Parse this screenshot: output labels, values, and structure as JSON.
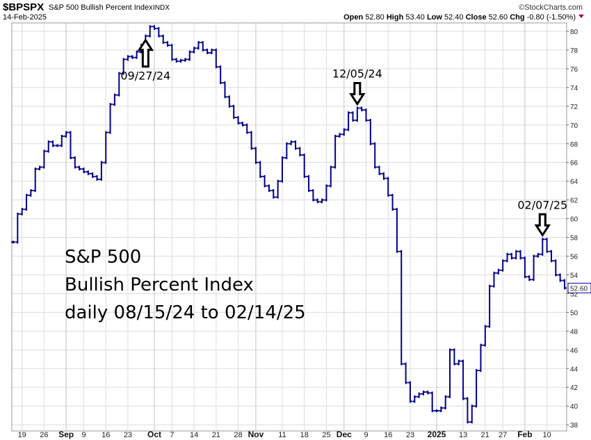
{
  "header": {
    "symbol": "$BPSPX",
    "name": "S&P 500 Bullish Percent Index",
    "exchange": "INDX",
    "date": "14-Feb-2025",
    "brand": "©StockCharts.com",
    "open_label": "Open",
    "open": "52.80",
    "high_label": "High",
    "high": "53.40",
    "low_label": "Low",
    "low": "52.40",
    "close_label": "Close",
    "close": "52.60",
    "chg_label": "Chg",
    "chg": "-0.80 (-1.50%)",
    "down_color": "#b0003a"
  },
  "overlay_text": [
    "S&P 500",
    "Bullish Percent Index",
    "daily 08/15/24 to 02/14/25"
  ],
  "annotations": [
    {
      "label": "09/27/24",
      "date": "09-27",
      "direction": "up"
    },
    {
      "label": "12/05/24",
      "date": "12-05",
      "direction": "down"
    },
    {
      "label": "02/07/25",
      "date": "02-07",
      "direction": "down"
    }
  ],
  "chart_data": {
    "type": "line",
    "title": "$BPSPX S&P 500 Bullish Percent Index",
    "series_color": "#00008b",
    "ylim": [
      37,
      81.5
    ],
    "yticks": [
      38,
      40,
      42,
      44,
      46,
      48,
      50,
      52,
      54,
      56,
      58,
      60,
      62,
      64,
      66,
      68,
      70,
      72,
      74,
      76,
      78,
      80
    ],
    "last_value_label": "52.60",
    "xticks": [
      {
        "label": "19",
        "date": "08-19",
        "bold": false
      },
      {
        "label": "26",
        "date": "08-26",
        "bold": false
      },
      {
        "label": "Sep",
        "date": "09-03",
        "bold": true
      },
      {
        "label": "9",
        "date": "09-09",
        "bold": false
      },
      {
        "label": "16",
        "date": "09-16",
        "bold": false
      },
      {
        "label": "23",
        "date": "09-23",
        "bold": false
      },
      {
        "label": "Oct",
        "date": "10-01",
        "bold": true
      },
      {
        "label": "7",
        "date": "10-07",
        "bold": false
      },
      {
        "label": "14",
        "date": "10-14",
        "bold": false
      },
      {
        "label": "21",
        "date": "10-21",
        "bold": false
      },
      {
        "label": "28",
        "date": "10-28",
        "bold": false
      },
      {
        "label": "Nov",
        "date": "11-01",
        "bold": true
      },
      {
        "label": "11",
        "date": "11-11",
        "bold": false
      },
      {
        "label": "18",
        "date": "11-18",
        "bold": false
      },
      {
        "label": "25",
        "date": "11-25",
        "bold": false
      },
      {
        "label": "Dec",
        "date": "12-02",
        "bold": true
      },
      {
        "label": "9",
        "date": "12-09",
        "bold": false
      },
      {
        "label": "16",
        "date": "12-16",
        "bold": false
      },
      {
        "label": "23",
        "date": "12-23",
        "bold": false
      },
      {
        "label": "2025",
        "date": "01-02",
        "bold": true
      },
      {
        "label": "13",
        "date": "01-13",
        "bold": false
      },
      {
        "label": "21",
        "date": "01-21",
        "bold": false
      },
      {
        "label": "27",
        "date": "01-27",
        "bold": false
      },
      {
        "label": "Feb",
        "date": "02-03",
        "bold": true
      },
      {
        "label": "10",
        "date": "02-10",
        "bold": false
      }
    ],
    "dates": [
      "08-15",
      "08-16",
      "08-19",
      "08-20",
      "08-21",
      "08-22",
      "08-23",
      "08-26",
      "08-27",
      "08-28",
      "08-29",
      "08-30",
      "09-03",
      "09-04",
      "09-05",
      "09-06",
      "09-09",
      "09-10",
      "09-11",
      "09-12",
      "09-13",
      "09-16",
      "09-17",
      "09-18",
      "09-19",
      "09-20",
      "09-23",
      "09-24",
      "09-25",
      "09-26",
      "09-27",
      "09-30",
      "10-01",
      "10-02",
      "10-03",
      "10-04",
      "10-07",
      "10-08",
      "10-09",
      "10-10",
      "10-11",
      "10-14",
      "10-15",
      "10-16",
      "10-17",
      "10-18",
      "10-21",
      "10-22",
      "10-23",
      "10-24",
      "10-25",
      "10-28",
      "10-29",
      "10-30",
      "10-31",
      "11-01",
      "11-04",
      "11-05",
      "11-06",
      "11-07",
      "11-08",
      "11-11",
      "11-12",
      "11-13",
      "11-14",
      "11-15",
      "11-18",
      "11-19",
      "11-20",
      "11-21",
      "11-22",
      "11-25",
      "11-26",
      "11-27",
      "11-29",
      "12-02",
      "12-03",
      "12-04",
      "12-05",
      "12-06",
      "12-09",
      "12-10",
      "12-11",
      "12-12",
      "12-13",
      "12-16",
      "12-17",
      "12-18",
      "12-19",
      "12-20",
      "12-23",
      "12-24",
      "12-26",
      "12-27",
      "12-30",
      "12-31",
      "01-02",
      "01-03",
      "01-06",
      "01-07",
      "01-08",
      "01-10",
      "01-13",
      "01-14",
      "01-15",
      "01-16",
      "01-17",
      "01-21",
      "01-22",
      "01-23",
      "01-24",
      "01-27",
      "01-28",
      "01-29",
      "01-30",
      "01-31",
      "02-03",
      "02-04",
      "02-05",
      "02-06",
      "02-07",
      "02-10",
      "02-11",
      "02-12",
      "02-13",
      "02-14"
    ],
    "values": [
      57.5,
      60.5,
      61,
      62.5,
      63,
      65.3,
      65.5,
      67.2,
      68.2,
      67.8,
      67.8,
      68.8,
      69.2,
      66.5,
      65.5,
      65.3,
      65,
      64.8,
      64.5,
      64.2,
      66,
      69.2,
      72.2,
      73.2,
      75.5,
      77,
      77.3,
      77.2,
      77.8,
      78.5,
      79.5,
      80.5,
      80.3,
      79.5,
      78.8,
      78.5,
      77,
      76.8,
      76.9,
      77,
      77.8,
      78.2,
      78.8,
      78,
      77.7,
      78,
      76.2,
      74.5,
      73,
      72,
      70.8,
      70.2,
      70,
      69.2,
      67.5,
      66,
      64.5,
      63.5,
      63,
      62.3,
      64,
      66.5,
      68,
      68.2,
      67.5,
      66.8,
      64.5,
      63,
      62,
      61.8,
      62,
      63.5,
      65.5,
      68.8,
      69,
      69.5,
      71.3,
      70.5,
      71.8,
      71.6,
      70.5,
      68,
      65.5,
      64.8,
      64.3,
      62.5,
      61,
      56.5,
      44.5,
      42.5,
      40.5,
      41,
      41.3,
      41.5,
      41.4,
      39.5,
      39.5,
      39.8,
      41,
      46,
      44.5,
      44.8,
      40.8,
      38.3,
      40,
      43.8,
      46.5,
      48.5,
      52.8,
      54.2,
      54.5,
      55.5,
      56.2,
      55.8,
      56.5,
      55.8,
      53.8,
      53.5,
      56,
      56.2,
      57.8,
      56.5,
      55.5,
      54,
      53.4,
      52.6
    ]
  }
}
